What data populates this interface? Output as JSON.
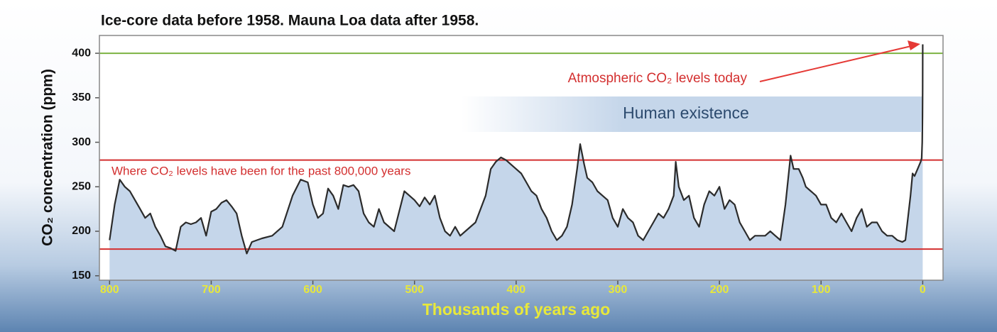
{
  "chart_data": {
    "type": "line",
    "title": "Ice-core data before 1958.  Mauna Loa data after 1958.",
    "x_label": "Thousands of years ago",
    "y_label": "CO₂ concentration (ppm)",
    "annotations": [
      "Atmospheric CO₂ levels today",
      "Human existence",
      "Where CO₂ levels have been for the past 800,000 years"
    ],
    "x": [
      800,
      795,
      790,
      785,
      780,
      775,
      770,
      765,
      760,
      755,
      750,
      745,
      740,
      735,
      730,
      725,
      720,
      715,
      710,
      705,
      700,
      695,
      690,
      685,
      680,
      675,
      670,
      665,
      660,
      655,
      650,
      640,
      630,
      620,
      612,
      605,
      600,
      595,
      590,
      585,
      580,
      575,
      570,
      565,
      560,
      555,
      550,
      545,
      540,
      535,
      530,
      520,
      510,
      505,
      500,
      495,
      490,
      485,
      480,
      475,
      470,
      465,
      460,
      455,
      450,
      440,
      430,
      425,
      420,
      415,
      410,
      405,
      400,
      395,
      390,
      385,
      380,
      375,
      370,
      365,
      360,
      355,
      350,
      345,
      340,
      337,
      333,
      330,
      325,
      320,
      315,
      310,
      305,
      300,
      295,
      290,
      285,
      280,
      275,
      270,
      265,
      260,
      255,
      250,
      245,
      243,
      240,
      235,
      230,
      225,
      220,
      215,
      210,
      205,
      200,
      195,
      190,
      185,
      180,
      175,
      170,
      165,
      160,
      155,
      150,
      145,
      140,
      135,
      130,
      127,
      122,
      118,
      115,
      110,
      105,
      100,
      95,
      90,
      85,
      80,
      75,
      70,
      65,
      60,
      55,
      50,
      45,
      40,
      35,
      30,
      25,
      20,
      17,
      12,
      10,
      8,
      5,
      2,
      1,
      0.5,
      0.2,
      0.05,
      0
    ],
    "series": [
      {
        "color": "#2b2b2b",
        "area_color": "#c5d6ea",
        "values": [
          190,
          230,
          258,
          250,
          245,
          235,
          225,
          215,
          220,
          205,
          195,
          183,
          181,
          178,
          205,
          210,
          208,
          210,
          215,
          195,
          222,
          225,
          232,
          235,
          228,
          220,
          195,
          175,
          188,
          190,
          192,
          195,
          205,
          240,
          258,
          255,
          230,
          215,
          220,
          248,
          240,
          225,
          252,
          250,
          252,
          245,
          220,
          210,
          205,
          225,
          210,
          200,
          245,
          240,
          235,
          228,
          238,
          230,
          240,
          215,
          200,
          195,
          205,
          195,
          200,
          210,
          240,
          270,
          278,
          283,
          280,
          275,
          270,
          265,
          255,
          245,
          240,
          225,
          215,
          200,
          190,
          195,
          205,
          230,
          270,
          298,
          275,
          260,
          255,
          245,
          240,
          235,
          215,
          205,
          225,
          215,
          210,
          195,
          190,
          200,
          210,
          220,
          215,
          225,
          240,
          278,
          250,
          235,
          240,
          215,
          205,
          230,
          245,
          240,
          250,
          225,
          235,
          230,
          210,
          200,
          190,
          195,
          195,
          195,
          200,
          195,
          190,
          230,
          285,
          270,
          270,
          260,
          250,
          245,
          240,
          230,
          230,
          215,
          210,
          220,
          210,
          200,
          215,
          225,
          205,
          210,
          210,
          200,
          195,
          195,
          190,
          188,
          190,
          240,
          265,
          262,
          270,
          278,
          282,
          300,
          330,
          360,
          410
        ]
      }
    ],
    "reference_lines": [
      {
        "value": 400,
        "color": "#7cb342"
      },
      {
        "value": 280,
        "color": "#d32f2f"
      },
      {
        "value": 180,
        "color": "#d32f2f"
      }
    ],
    "xlim": [
      810,
      -20
    ],
    "xticks": [
      800,
      700,
      600,
      500,
      400,
      300,
      200,
      100,
      0
    ],
    "ylim": [
      145,
      420
    ],
    "yticks": [
      150,
      200,
      250,
      300,
      350,
      400
    ]
  }
}
